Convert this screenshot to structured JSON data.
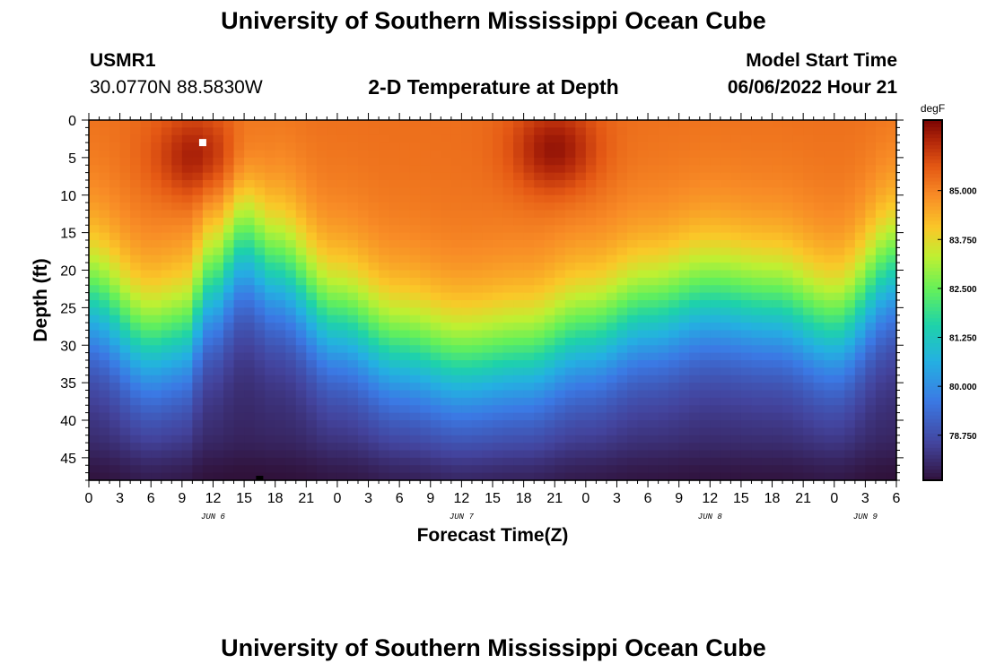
{
  "page": {
    "title_top": "University of Southern Mississippi Ocean Cube",
    "title_bottom": "University of Southern Mississippi Ocean Cube"
  },
  "header": {
    "station": "USMR1",
    "coords": "30.0770N  88.5830W",
    "plot_title": "2-D Temperature at Depth",
    "model_start_label": "Model Start Time",
    "model_start_value": "06/06/2022 Hour 21"
  },
  "chart_data": {
    "type": "heatmap",
    "title": "2-D Temperature at Depth",
    "xlabel": "Forecast Time(Z)",
    "ylabel": "Depth (ft)",
    "x_hours_range": [
      0,
      78
    ],
    "ylim": [
      0,
      48
    ],
    "y_ticks": [
      0,
      5,
      10,
      15,
      20,
      25,
      30,
      35,
      40,
      45
    ],
    "x_tick_labels": [
      "0",
      "3",
      "6",
      "9",
      "12",
      "15",
      "18",
      "21",
      "0",
      "3",
      "6",
      "9",
      "12",
      "15",
      "18",
      "21",
      "0",
      "3",
      "6",
      "9",
      "12",
      "15",
      "18",
      "21",
      "0",
      "3",
      "6"
    ],
    "day_labels": [
      {
        "label": "JUN 6",
        "hour": 12
      },
      {
        "label": "JUN 7",
        "hour": 36
      },
      {
        "label": "JUN 8",
        "hour": 60
      },
      {
        "label": "JUN 9",
        "hour": 75
      }
    ],
    "colorbar": {
      "units": "degF",
      "min": 77.6,
      "max": 86.8,
      "ticks": [
        "85.000",
        "83.750",
        "82.500",
        "81.250",
        "80.000",
        "78.750"
      ],
      "tick_values": [
        85.0,
        83.75,
        82.5,
        81.25,
        80.0,
        78.75
      ]
    },
    "temperature_profile": {
      "surface_degF": 85.3,
      "bottom_degF": 77.9,
      "thermocline_depth_ft_by_hour": [
        [
          0,
          24
        ],
        [
          6,
          30
        ],
        [
          9,
          29
        ],
        [
          12,
          22
        ],
        [
          15,
          17
        ],
        [
          18,
          20
        ],
        [
          24,
          27
        ],
        [
          30,
          31
        ],
        [
          36,
          33
        ],
        [
          42,
          32
        ],
        [
          48,
          29
        ],
        [
          54,
          26
        ],
        [
          60,
          24
        ],
        [
          66,
          25
        ],
        [
          72,
          28
        ],
        [
          78,
          20
        ]
      ],
      "warm_spots": [
        {
          "hour": 10.5,
          "depth_ft": 5,
          "peak_degF": 86.5
        },
        {
          "hour": 45,
          "depth_ft": 4,
          "peak_degF": 86.6
        }
      ]
    },
    "markers": [
      {
        "hour": 11,
        "depth_ft": 3,
        "color": "#ffffff"
      },
      {
        "hour": 16.5,
        "depth_ft": 48,
        "color": "#000000"
      }
    ]
  }
}
